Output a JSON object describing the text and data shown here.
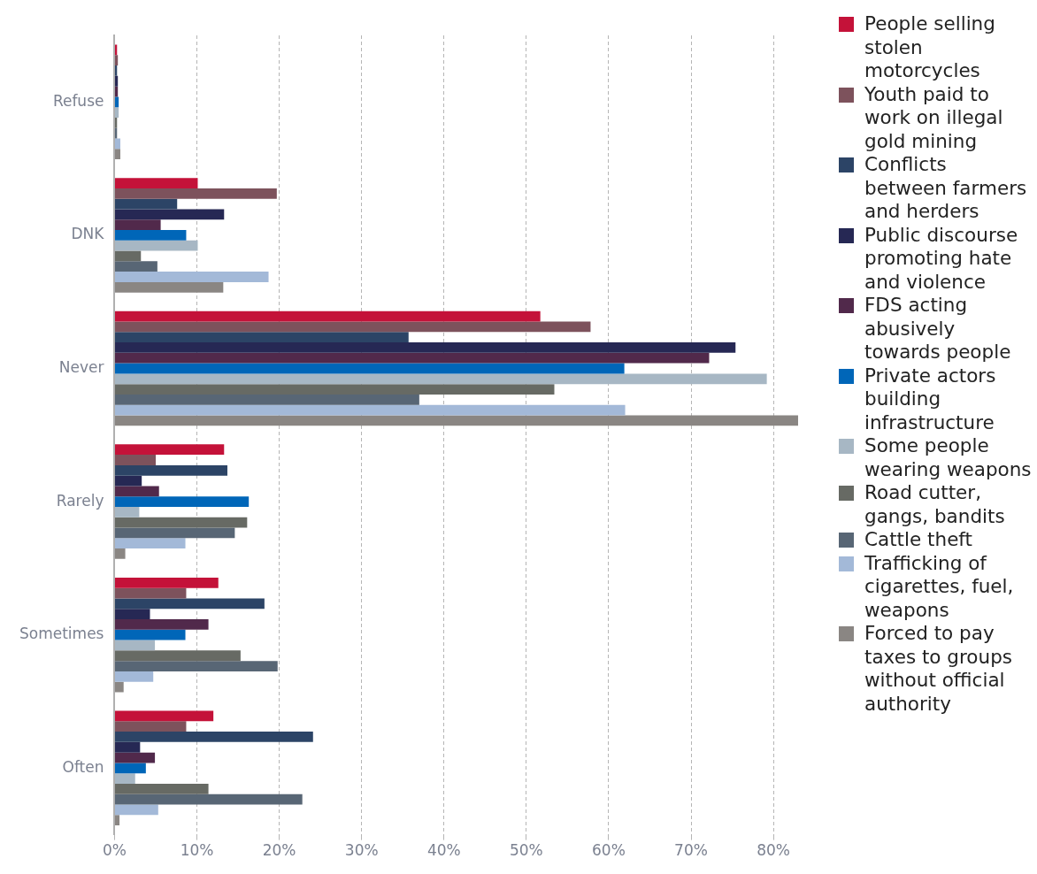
{
  "chart_data": {
    "type": "bar",
    "orientation": "horizontal",
    "categories": [
      "Refuse",
      "DNK",
      "Never",
      "Rarely",
      "Sometimes",
      "Often"
    ],
    "series": [
      {
        "name": "People selling stolen motorcycles",
        "color": "#c41239",
        "values": [
          0.3,
          10.1,
          51.7,
          13.3,
          12.6,
          12.0
        ]
      },
      {
        "name": "Youth paid to work on illegal gold mining",
        "color": "#7d525c",
        "values": [
          0.4,
          19.7,
          57.8,
          5.0,
          8.7,
          8.7
        ]
      },
      {
        "name": "Conflicts between farmers and herders",
        "color": "#2c4466",
        "values": [
          0.3,
          7.6,
          35.7,
          13.7,
          18.2,
          24.1
        ]
      },
      {
        "name": "Public discourse promoting hate and violence",
        "color": "#262854",
        "values": [
          0.4,
          13.3,
          75.4,
          3.3,
          4.3,
          3.1
        ]
      },
      {
        "name": "FDS acting abusively towards people",
        "color": "#51294b",
        "values": [
          0.4,
          5.6,
          72.2,
          5.4,
          11.4,
          4.9
        ]
      },
      {
        "name": "Private actors building infrastructure",
        "color": "#0066b8",
        "values": [
          0.5,
          8.7,
          61.9,
          16.3,
          8.6,
          3.8
        ]
      },
      {
        "name": "Some people wearing weapons",
        "color": "#a7b7c4",
        "values": [
          0.5,
          10.1,
          79.2,
          3.0,
          4.9,
          2.5
        ]
      },
      {
        "name": "Road cutter, gangs, bandits",
        "color": "#676a64",
        "values": [
          0.3,
          3.2,
          53.4,
          16.1,
          15.3,
          11.4
        ]
      },
      {
        "name": "Cattle theft",
        "color": "#586675",
        "values": [
          0.3,
          5.2,
          37.0,
          14.6,
          19.8,
          22.8
        ]
      },
      {
        "name": "Trafficking of cigarettes, fuel, weapons",
        "color": "#a3b9d8",
        "values": [
          0.7,
          18.7,
          62.0,
          8.6,
          4.7,
          5.3
        ]
      },
      {
        "name": "Forced to pay taxes to groups without official authority",
        "color": "#8a8683",
        "values": [
          0.7,
          13.2,
          83.0,
          1.3,
          1.1,
          0.6
        ]
      }
    ],
    "xlim": [
      0,
      83
    ],
    "xticks": [
      {
        "value": 0,
        "label": "0%"
      },
      {
        "value": 10,
        "label": "10%"
      },
      {
        "value": 20,
        "label": "20%"
      },
      {
        "value": 30,
        "label": "30%"
      },
      {
        "value": 40,
        "label": "40%"
      },
      {
        "value": 50,
        "label": "50%"
      },
      {
        "value": 60,
        "label": "60%"
      },
      {
        "value": 70,
        "label": "70%"
      },
      {
        "value": 80,
        "label": "80%"
      }
    ],
    "grid": "x",
    "legend": "right"
  }
}
